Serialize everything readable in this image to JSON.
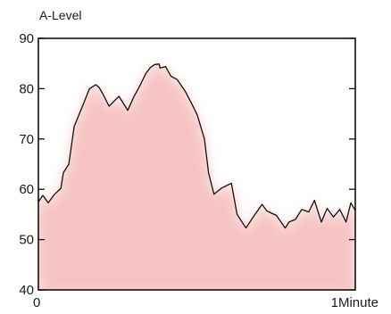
{
  "chart_data": {
    "type": "area",
    "ylabel": "A-Level",
    "ylim": [
      40,
      90
    ],
    "yticks": [
      40,
      50,
      60,
      70,
      80,
      90
    ],
    "xlim": [
      0,
      1
    ],
    "xticks": [
      {
        "value": 0,
        "label": "0"
      },
      {
        "value": 1,
        "label": "1Minute"
      }
    ],
    "grid": false,
    "fill_color": "#f6c3c3",
    "fill_edge_color": "#fde9e9",
    "line_color": "#111111",
    "series": [
      {
        "x": [
          0,
          0.014,
          0.031,
          0.051,
          0.071,
          0.079,
          0.096,
          0.113,
          0.141,
          0.161,
          0.181,
          0.192,
          0.203,
          0.223,
          0.254,
          0.282,
          0.302,
          0.322,
          0.339,
          0.353,
          0.367,
          0.381,
          0.384,
          0.401,
          0.418,
          0.438,
          0.463,
          0.484,
          0.501,
          0.524,
          0.537,
          0.554,
          0.577,
          0.609,
          0.627,
          0.655,
          0.681,
          0.706,
          0.721,
          0.751,
          0.779,
          0.791,
          0.811,
          0.831,
          0.853,
          0.871,
          0.893,
          0.911,
          0.931,
          0.951,
          0.971,
          0.986,
          1.0
        ],
        "y": [
          57.5,
          58.8,
          57.3,
          59.0,
          60.2,
          63.3,
          65.0,
          72.5,
          76.8,
          80.0,
          80.8,
          80.2,
          79.0,
          76.5,
          78.5,
          75.7,
          78.5,
          80.8,
          83.0,
          84.2,
          84.8,
          84.9,
          84.1,
          84.4,
          82.5,
          81.8,
          79.5,
          77.0,
          74.8,
          70.0,
          63.3,
          59.0,
          60.2,
          61.2,
          55.0,
          52.3,
          54.8,
          57.0,
          55.7,
          54.8,
          52.3,
          53.5,
          54.0,
          56.0,
          55.5,
          57.8,
          53.5,
          56.2,
          54.5,
          56.0,
          53.5,
          57.3,
          55.8
        ]
      }
    ]
  }
}
